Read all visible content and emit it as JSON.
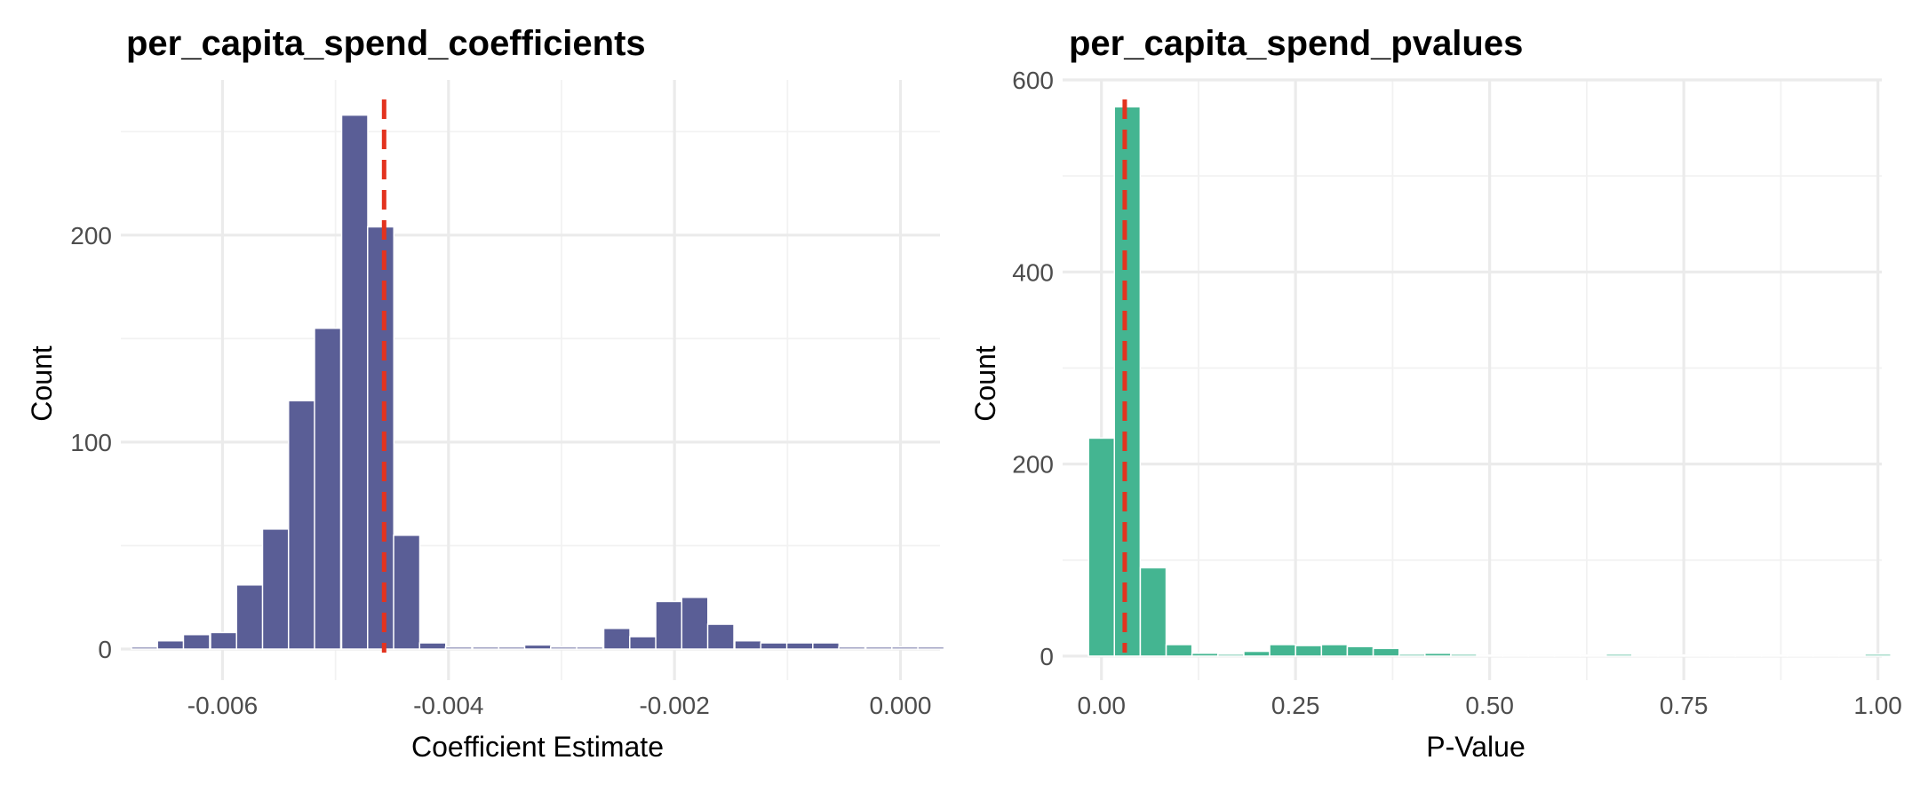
{
  "chart_data": [
    {
      "type": "bar",
      "title": "per_capita_spend_coefficients",
      "xlabel": "Coefficient Estimate",
      "ylabel": "Count",
      "xlim": [
        -0.0069,
        0.00035
      ],
      "ylim": [
        -15,
        275
      ],
      "x_major_ticks": [
        -0.006,
        -0.004,
        -0.002,
        0.0
      ],
      "x_tick_labels": [
        "-0.006",
        "-0.004",
        "-0.002",
        "0.000"
      ],
      "x_minor_ticks": [
        -0.005,
        -0.003,
        -0.001
      ],
      "y_major_ticks": [
        0,
        100,
        200
      ],
      "y_tick_labels": [
        "0",
        "100",
        "200"
      ],
      "y_minor_ticks": [
        50,
        150,
        250
      ],
      "bar_color": "#5a5e96",
      "bin_width": 0.000232,
      "bin_centers": [
        -0.00669,
        -0.00646,
        -0.00623,
        -0.00599,
        -0.00576,
        -0.00553,
        -0.0053,
        -0.00507,
        -0.00483,
        -0.0046,
        -0.00437,
        -0.00414,
        -0.00391,
        -0.00367,
        -0.00344,
        -0.00321,
        -0.00298,
        -0.00275,
        -0.00251,
        -0.00228,
        -0.00205,
        -0.00182,
        -0.00159,
        -0.00135,
        -0.00112,
        -0.00089,
        -0.00066,
        -0.00043,
        -0.00019,
        4e-05,
        0.00027
      ],
      "values": [
        1,
        4,
        7,
        8,
        31,
        58,
        120,
        155,
        258,
        204,
        55,
        3,
        1,
        1,
        1,
        2,
        1,
        1,
        10,
        6,
        23,
        25,
        12,
        4,
        3,
        3,
        3,
        1,
        1,
        1,
        1
      ],
      "reference_line": -0.00457,
      "reference_color": "#e3331f"
    },
    {
      "type": "bar",
      "title": "per_capita_spend_pvalues",
      "xlabel": "P-Value",
      "ylabel": "Count",
      "xlim": [
        -0.05,
        1.005
      ],
      "ylim": [
        -25,
        600
      ],
      "x_major_ticks": [
        0.0,
        0.25,
        0.5,
        0.75,
        1.0
      ],
      "x_tick_labels": [
        "0.00",
        "0.25",
        "0.50",
        "0.75",
        "1.00"
      ],
      "x_minor_ticks": [
        0.125,
        0.375,
        0.625,
        0.875
      ],
      "y_major_ticks": [
        0,
        200,
        400,
        600
      ],
      "y_tick_labels": [
        "0",
        "200",
        "400",
        "600"
      ],
      "y_minor_ticks": [
        100,
        300,
        500
      ],
      "bar_color": "#44b591",
      "bin_width": 0.0333,
      "bin_centers": [
        0.0,
        0.0333,
        0.0667,
        0.1,
        0.1333,
        0.1667,
        0.2,
        0.2333,
        0.2667,
        0.3,
        0.3333,
        0.3667,
        0.4,
        0.4333,
        0.4667,
        0.5,
        0.5333,
        0.5667,
        0.6,
        0.6333,
        0.6667,
        0.7,
        0.7333,
        0.7667,
        0.8,
        0.8333,
        0.8667,
        0.9,
        0.9333,
        0.9667,
        1.0
      ],
      "values": [
        227,
        572,
        92,
        12,
        3,
        2,
        5,
        12,
        11,
        12,
        10,
        8,
        2,
        3,
        2,
        1,
        1,
        1,
        1,
        1,
        2,
        1,
        1,
        1,
        1,
        1,
        1,
        1,
        1,
        1,
        2
      ],
      "reference_line": 0.03,
      "reference_color": "#e3331f"
    }
  ]
}
